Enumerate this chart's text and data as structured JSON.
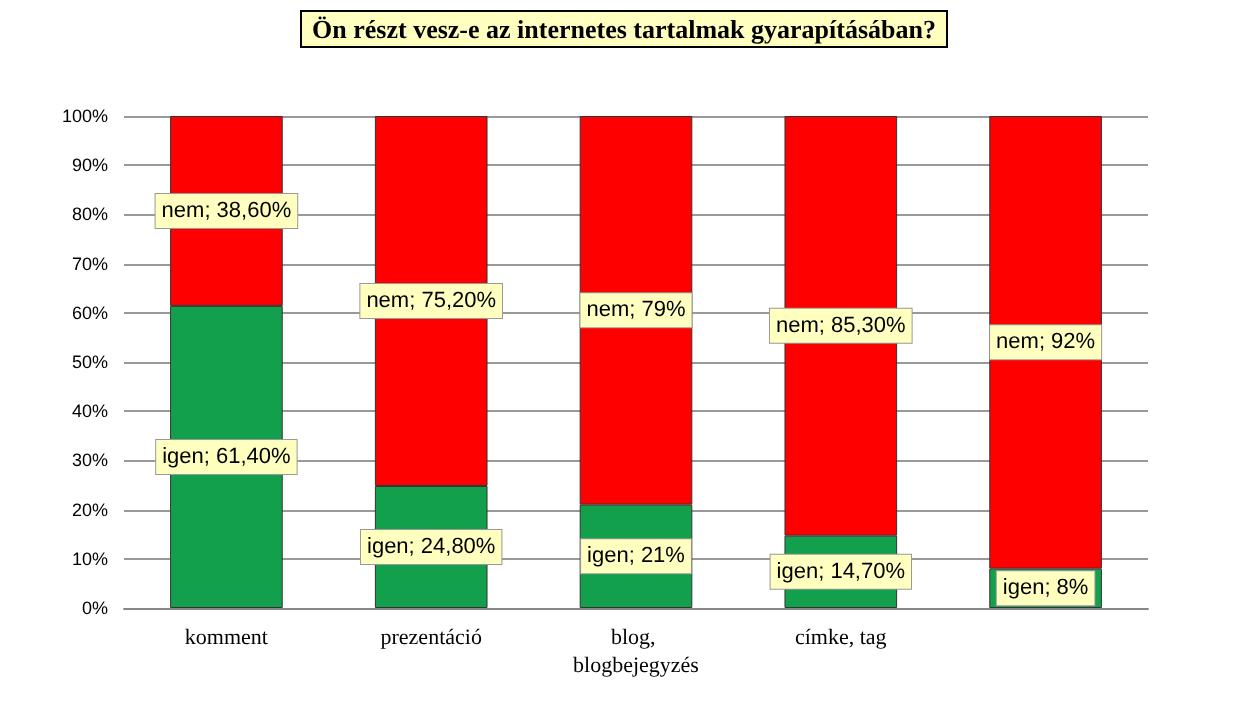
{
  "chart_data": {
    "type": "bar",
    "title": "Ön részt vesz-e az internetes tartalmak gyarapításában?",
    "categories": [
      "komment",
      "prezentáció",
      "blog, blogbejegyzés",
      "címke, tag",
      null
    ],
    "stacked": true,
    "grid": "y",
    "legend": false,
    "series": [
      {
        "name": "igen",
        "color": "#12a04c",
        "values": [
          61.4,
          24.8,
          21,
          14.7,
          8
        ],
        "value_labels": [
          "; 61,40%",
          "; 24,80%",
          "; 21%",
          "; 14,70%",
          "; 8%"
        ]
      },
      {
        "name": "nem",
        "color": "#ff0000",
        "values": [
          38.6,
          75.2,
          79,
          85.3,
          92
        ],
        "value_labels": [
          "; 38,60%",
          "; 75,20%",
          "; 79%",
          "; 85,30%",
          "; 92%"
        ]
      }
    ],
    "ylim": [
      0,
      100
    ],
    "yticks": [
      {
        "value": 0,
        "label": "0%"
      },
      {
        "value": 10,
        "label": "10%"
      },
      {
        "value": 20,
        "label": "20%"
      },
      {
        "value": 30,
        "label": "30%"
      },
      {
        "value": 40,
        "label": "40%"
      },
      {
        "value": 50,
        "label": "50%"
      },
      {
        "value": 60,
        "label": "60%"
      },
      {
        "value": 70,
        "label": "70%"
      },
      {
        "value": 80,
        "label": "80%"
      },
      {
        "value": 90,
        "label": "90%"
      },
      {
        "value": 100,
        "label": "100%"
      }
    ]
  }
}
